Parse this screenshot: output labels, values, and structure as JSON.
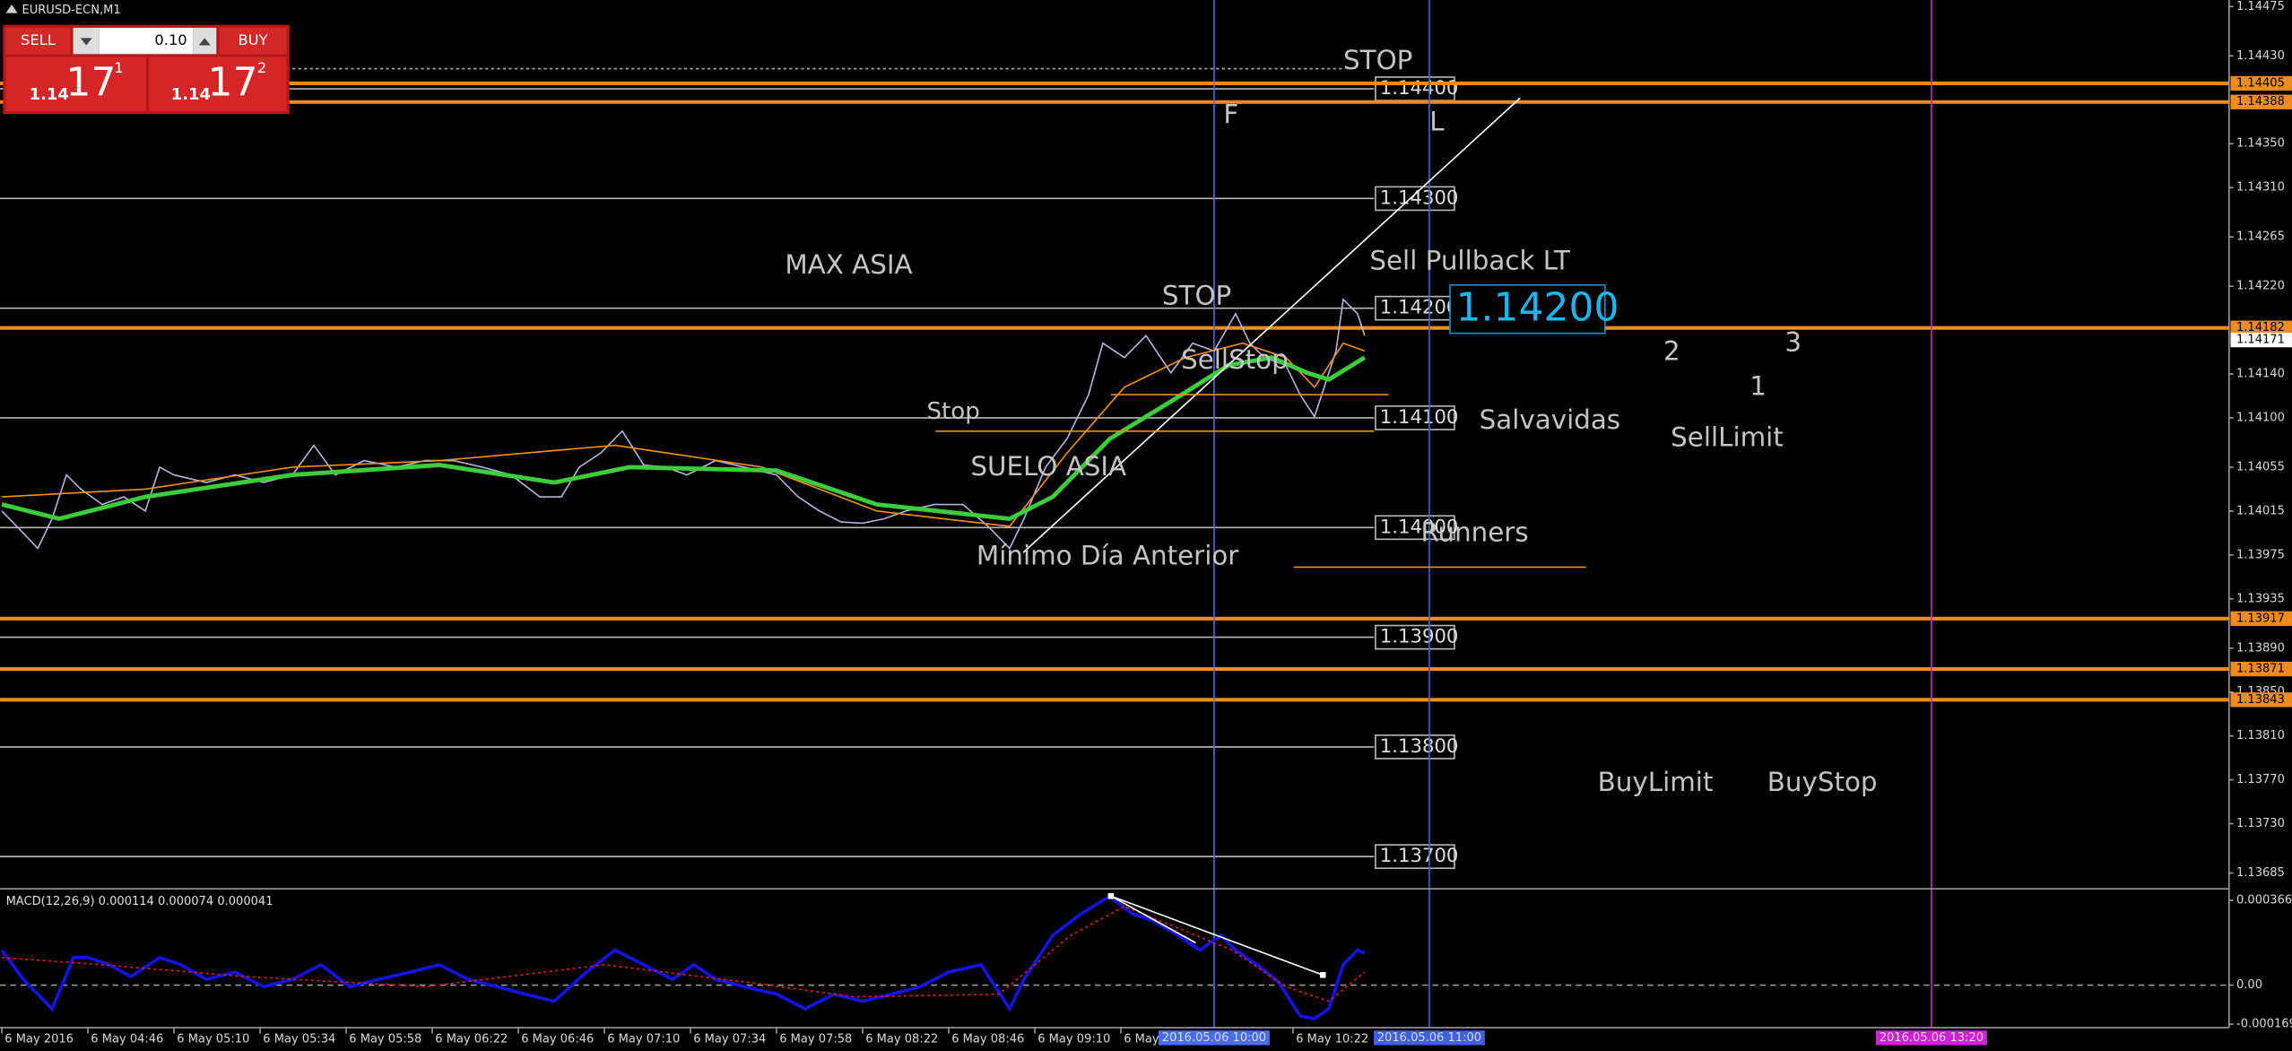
{
  "window_title": "EURUSD-ECN,M1",
  "trade_panel": {
    "sell": "SELL",
    "lot": "0.10",
    "buy": "BUY",
    "bid": {
      "big": "1.14",
      "pips": "17",
      "point": "1"
    },
    "ask": {
      "big": "1.14",
      "pips": "17",
      "point": "2"
    }
  },
  "chart_data": [
    {
      "type": "line",
      "xlim": [
        261.5,
        883
      ],
      "ylim": [
        1.13672,
        1.14481
      ],
      "yticks": [
        {
          "value": 1.14475,
          "label": "1.14475"
        },
        {
          "value": 1.1443,
          "label": "1.14430"
        },
        {
          "value": 1.1435,
          "label": "1.14350"
        },
        {
          "value": 1.1431,
          "label": "1.14310"
        },
        {
          "value": 1.14265,
          "label": "1.14265"
        },
        {
          "value": 1.1422,
          "label": "1.14220"
        },
        {
          "value": 1.1414,
          "label": "1.14140"
        },
        {
          "value": 1.141,
          "label": "1.14100"
        },
        {
          "value": 1.14055,
          "label": "1.14055"
        },
        {
          "value": 1.14015,
          "label": "1.14015"
        },
        {
          "value": 1.13975,
          "label": "1.13975"
        },
        {
          "value": 1.13935,
          "label": "1.13935"
        },
        {
          "value": 1.1389,
          "label": "1.13890"
        },
        {
          "value": 1.1385,
          "label": "1.13850"
        },
        {
          "value": 1.1381,
          "label": "1.13810"
        },
        {
          "value": 1.1377,
          "label": "1.13770"
        },
        {
          "value": 1.1373,
          "label": "1.13730"
        },
        {
          "value": 1.13685,
          "label": "1.13685"
        }
      ],
      "series": [
        {
          "color": "#b4b4d8",
          "width": 1,
          "x": [
            262,
            268,
            272,
            276,
            280,
            284,
            290,
            296,
            302,
            306,
            310,
            319,
            327,
            335,
            343,
            349,
            355,
            363,
            372,
            380,
            388,
            396,
            404,
            412,
            418,
            423,
            429,
            435,
            441,
            447,
            453,
            461,
            469,
            478,
            484,
            490,
            496,
            502,
            508,
            514,
            522,
            530,
            537,
            543,
            547,
            553,
            559,
            565,
            569,
            575,
            581,
            588,
            594,
            600,
            606,
            610,
            614,
            620,
            624,
            628,
            630,
            634,
            636,
            640,
            642
          ],
          "values": [
            1.14015,
            1.13995,
            1.13981,
            1.14008,
            1.14048,
            1.14035,
            1.14021,
            1.14028,
            1.14015,
            1.14055,
            1.14048,
            1.14041,
            1.14048,
            1.14041,
            1.14048,
            1.14075,
            1.14048,
            1.14061,
            1.14055,
            1.14061,
            1.14061,
            1.14055,
            1.14048,
            1.14028,
            1.14028,
            1.14055,
            1.14068,
            1.14088,
            1.14057,
            1.14055,
            1.14048,
            1.14061,
            1.14055,
            1.14048,
            1.14028,
            1.14015,
            1.14005,
            1.14004,
            1.14008,
            1.14015,
            1.14021,
            1.14021,
            1.14001,
            1.13981,
            1.14008,
            1.14055,
            1.14081,
            1.14121,
            1.14168,
            1.14155,
            1.14175,
            1.14141,
            1.14168,
            1.14161,
            1.14195,
            1.14168,
            1.14155,
            1.14148,
            1.14121,
            1.14101,
            1.14121,
            1.14161,
            1.14208,
            1.14195,
            1.14175
          ]
        },
        {
          "color": "#f0901a",
          "width": 1,
          "x": [
            262,
            302,
            343,
            384,
            433,
            474,
            506,
            543,
            559,
            575,
            592,
            608,
            620,
            628,
            636,
            642
          ],
          "values": [
            1.14028,
            1.14035,
            1.14055,
            1.14061,
            1.14075,
            1.14055,
            1.14015,
            1.14001,
            1.14068,
            1.14128,
            1.14155,
            1.14168,
            1.14155,
            1.14128,
            1.14168,
            1.14161
          ]
        },
        {
          "color": "#3ccc3c",
          "width": 3,
          "x": [
            262,
            278,
            302,
            343,
            384,
            416,
            437,
            478,
            506,
            543,
            555,
            571,
            588,
            604,
            616,
            626,
            632,
            642
          ],
          "values": [
            1.14021,
            1.14008,
            1.14028,
            1.14048,
            1.14057,
            1.14041,
            1.14055,
            1.14052,
            1.14021,
            1.14008,
            1.14028,
            1.14081,
            1.14115,
            1.14148,
            1.14155,
            1.14141,
            1.14135,
            1.14155
          ]
        }
      ],
      "hlines": [
        {
          "value": 1.144,
          "label": "1.14400"
        },
        {
          "value": 1.143,
          "label": "1.14300"
        },
        {
          "value": 1.142,
          "label": "1.14200"
        },
        {
          "value": 1.141,
          "label": "1.14100"
        },
        {
          "value": 1.14,
          "label": "1.14000"
        },
        {
          "value": 1.139,
          "label": "1.13900"
        },
        {
          "value": 1.138,
          "label": "1.13800"
        },
        {
          "value": 1.137,
          "label": "1.13700"
        }
      ],
      "levels": [
        {
          "value": 1.14405,
          "label": "1.14405"
        },
        {
          "value": 1.14388,
          "label": "1.14388"
        },
        {
          "value": 1.14182,
          "label": "1.14182"
        },
        {
          "value": 1.13917,
          "label": "1.13917"
        },
        {
          "value": 1.13871,
          "label": "1.13871"
        },
        {
          "value": 1.13843,
          "label": "1.13843"
        }
      ],
      "level_color": "#f08c1e",
      "current_price": {
        "value": 1.14171,
        "label": "1.14171"
      },
      "vlines": [
        {
          "value": 600,
          "label": "2016.05.06 10:00",
          "color": "#4a6cf0"
        },
        {
          "value": 660,
          "label": "2016.05.06 11:00",
          "color": "#4060e0"
        },
        {
          "value": 800,
          "label": "2016.05.06 13:20",
          "color": "#d020d8"
        }
      ],
      "annotations": [
        "STOP",
        "F",
        "L",
        "MAX ASIA",
        "STOP",
        "Sell Pullback LT",
        "Stop",
        "SellStop",
        "Salvavidas",
        "SUELO ASIA",
        "Runners",
        "Mínimo Día Anterior",
        "2",
        "1",
        "3",
        "SellLimit",
        "BuyLimit",
        "BuyStop",
        "1.14200"
      ]
    },
    {
      "type": "line",
      "title": "MACD(12,26,9) 0.000114 0.000074 0.000041",
      "xlim": [
        261.5,
        883
      ],
      "ylim": [
        -0.00019,
        0.00041
      ],
      "yticks": [
        {
          "value": 0.000366,
          "label": "0.000366"
        },
        {
          "value": 0,
          "label": "0.00"
        },
        {
          "value": -0.000169,
          "label": "-0.000169"
        }
      ],
      "xticks": [
        {
          "value": 262,
          "label": "6 May 2016"
        },
        {
          "value": 286,
          "label": "6 May 04:46"
        },
        {
          "value": 310,
          "label": "6 May 05:10"
        },
        {
          "value": 334,
          "label": "6 May 05:34"
        },
        {
          "value": 358,
          "label": "6 May 05:58"
        },
        {
          "value": 382,
          "label": "6 May 06:22"
        },
        {
          "value": 406,
          "label": "6 May 06:46"
        },
        {
          "value": 430,
          "label": "6 May 07:10"
        },
        {
          "value": 454,
          "label": "6 May 07:34"
        },
        {
          "value": 478,
          "label": "6 May 07:58"
        },
        {
          "value": 502,
          "label": "6 May 08:22"
        },
        {
          "value": 526,
          "label": "6 May 08:46"
        },
        {
          "value": 550,
          "label": "6 May 09:10"
        },
        {
          "value": 574,
          "label": "6 May"
        },
        {
          "value": 622,
          "label": "6 May 10:22"
        }
      ],
      "series": [
        {
          "color": "#1414e6",
          "width": 2.2,
          "x": [
            262,
            268,
            276,
            282,
            286,
            292,
            298,
            306,
            312,
            319,
            327,
            335,
            343,
            351,
            359,
            367,
            376,
            384,
            392,
            400,
            408,
            416,
            425,
            433,
            441,
            449,
            455,
            461,
            469,
            478,
            486,
            494,
            502,
            510,
            518,
            526,
            535,
            543,
            547,
            555,
            563,
            571,
            577,
            583,
            590,
            596,
            602,
            606,
            612,
            618,
            624,
            628,
            632,
            636,
            640,
            642
          ],
          "values": [
            0.000151,
            2.5e-05,
            -0.000102,
            0.000119,
            0.000119,
            8.8e-05,
            3.7e-05,
            0.000119,
            8.8e-05,
            2.5e-05,
            5.6e-05,
            -7e-06,
            2.5e-05,
            8.8e-05,
            -7e-06,
            2.5e-05,
            5.6e-05,
            8.8e-05,
            2.5e-05,
            -7e-06,
            -3.9e-05,
            -7e-05,
            5.6e-05,
            0.000151,
            8.8e-05,
            2.5e-05,
            8.8e-05,
            2.5e-05,
            -7e-06,
            -3.9e-05,
            -0.000102,
            -3.9e-05,
            -7e-05,
            -3.9e-05,
            -7e-06,
            5.6e-05,
            8.8e-05,
            -0.000102,
            2.5e-05,
            0.000214,
            0.000309,
            0.000385,
            0.000309,
            0.000278,
            0.000214,
            0.000151,
            0.000214,
            0.000151,
            8.8e-05,
            1.2e-05,
            -0.000133,
            -0.000146,
            -0.000102,
            8.8e-05,
            0.000151,
            0.000138
          ]
        },
        {
          "color": "#d02020",
          "width": 1,
          "dashed": true,
          "x": [
            262,
            290,
            330,
            380,
            430,
            470,
            500,
            540,
            560,
            575,
            590,
            605,
            620,
            632,
            642
          ],
          "values": [
            0.000119,
            8.8e-05,
            3.7e-05,
            -7e-06,
            8.8e-05,
            1.2e-05,
            -5.1e-05,
            -3.9e-05,
            0.000214,
            0.00034,
            0.000246,
            0.000151,
            -7e-06,
            -7e-05,
            5.6e-05
          ]
        }
      ]
    }
  ]
}
